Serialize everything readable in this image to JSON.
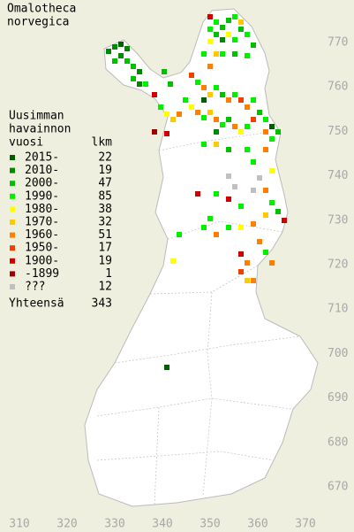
{
  "title_lines": [
    "Omalotheca",
    "norvegica"
  ],
  "legend": {
    "header_lines": [
      "Uusimman",
      "havainnon",
      "vuosi"
    ],
    "count_header": "lkm",
    "items": [
      {
        "label": "2015-",
        "count": 22,
        "color": "#006000"
      },
      {
        "label": "2010-",
        "count": 19,
        "color": "#008800"
      },
      {
        "label": "2000-",
        "count": 47,
        "color": "#00c000"
      },
      {
        "label": "1990-",
        "count": 85,
        "color": "#00f000"
      },
      {
        "label": "1980-",
        "count": 38,
        "color": "#ffff00"
      },
      {
        "label": "1970-",
        "count": 32,
        "color": "#ffc800"
      },
      {
        "label": "1960-",
        "count": 51,
        "color": "#ff8000"
      },
      {
        "label": "1950-",
        "count": 17,
        "color": "#ee4000"
      },
      {
        "label": "1900-",
        "count": 19,
        "color": "#d00000"
      },
      {
        "label": "-1899",
        "count": 1,
        "color": "#a00000"
      },
      {
        "label": "???",
        "count": 12,
        "color": "#c0c0c0"
      }
    ],
    "total_label": "Yhteensä",
    "total": 343
  },
  "xticks": [
    310,
    320,
    330,
    340,
    350,
    360,
    370
  ],
  "yticks": [
    770,
    760,
    750,
    740,
    730,
    720,
    710,
    700,
    690,
    680,
    670
  ]
}
